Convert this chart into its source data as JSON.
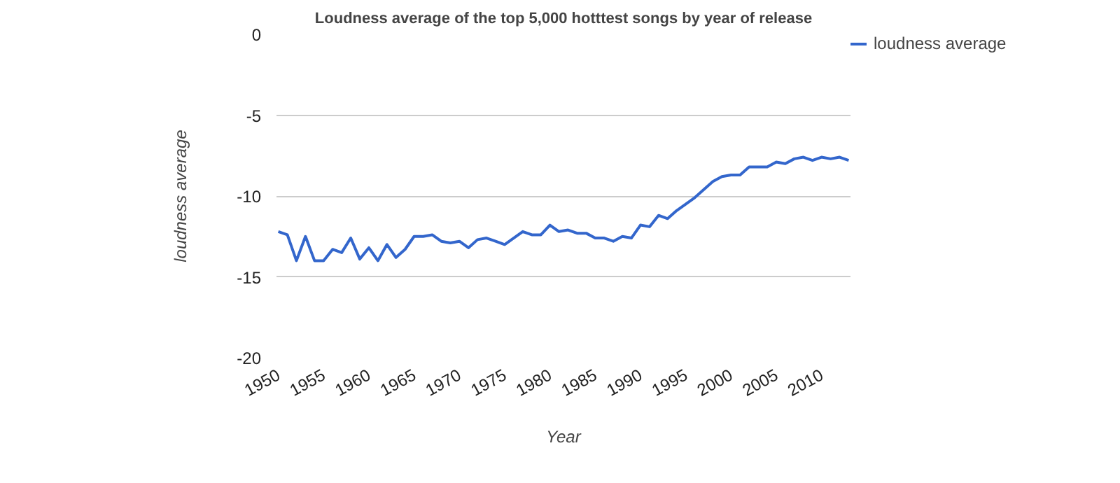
{
  "chart_data": {
    "type": "line",
    "title": "Loudness average of the top 5,000 hotttest songs by year of release",
    "xlabel": "Year",
    "ylabel": "loudness average",
    "x": [
      1950,
      1951,
      1952,
      1953,
      1954,
      1955,
      1956,
      1957,
      1958,
      1959,
      1960,
      1961,
      1962,
      1963,
      1964,
      1965,
      1966,
      1967,
      1968,
      1969,
      1970,
      1971,
      1972,
      1973,
      1974,
      1975,
      1976,
      1977,
      1978,
      1979,
      1980,
      1981,
      1982,
      1983,
      1984,
      1985,
      1986,
      1987,
      1988,
      1989,
      1990,
      1991,
      1992,
      1993,
      1994,
      1995,
      1996,
      1997,
      1998,
      1999,
      2000,
      2001,
      2002,
      2003,
      2004,
      2005,
      2006,
      2007,
      2008,
      2009,
      2010,
      2011,
      2012,
      2013
    ],
    "series": [
      {
        "name": "loudness average",
        "color": "#3366cc",
        "values": [
          -12.2,
          -12.4,
          -14.0,
          -12.5,
          -14.0,
          -14.0,
          -13.3,
          -13.5,
          -12.6,
          -13.9,
          -13.2,
          -14.0,
          -13.0,
          -13.8,
          -13.3,
          -12.5,
          -12.5,
          -12.4,
          -12.8,
          -12.9,
          -12.8,
          -13.2,
          -12.7,
          -12.6,
          -12.8,
          -13.0,
          -12.6,
          -12.2,
          -12.4,
          -12.4,
          -11.8,
          -12.2,
          -12.1,
          -12.3,
          -12.3,
          -12.6,
          -12.6,
          -12.8,
          -12.5,
          -12.6,
          -11.8,
          -11.9,
          -11.2,
          -11.4,
          -10.9,
          -10.5,
          -10.1,
          -9.6,
          -9.1,
          -8.8,
          -8.7,
          -8.7,
          -8.2,
          -8.2,
          -8.2,
          -7.9,
          -8.0,
          -7.7,
          -7.6,
          -7.8,
          -7.6,
          -7.7,
          -7.6,
          -7.8
        ]
      }
    ],
    "xlim": [
      1949.8,
      2013.2
    ],
    "ylim": [
      -20,
      0
    ],
    "xticks": [
      1950,
      1955,
      1960,
      1965,
      1970,
      1975,
      1980,
      1985,
      1990,
      1995,
      2000,
      2005,
      2010
    ],
    "yticks": [
      -20,
      -15,
      -10,
      -5,
      0
    ],
    "grid": "y",
    "legend": "right"
  }
}
